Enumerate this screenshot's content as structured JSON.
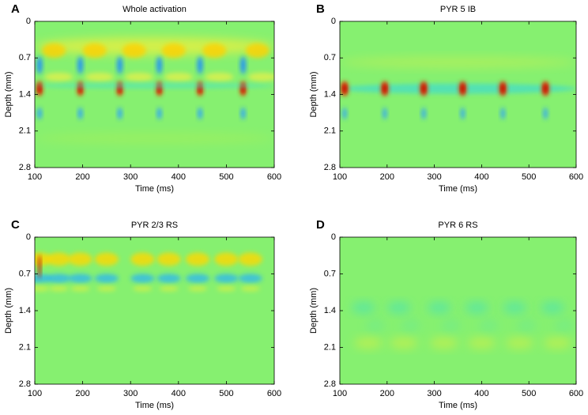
{
  "chart_data": [
    {
      "type": "heatmap",
      "panel": "A",
      "title": "Whole activation",
      "xlabel": "Time (ms)",
      "ylabel": "Depth (mm)",
      "xlim": [
        100,
        600
      ],
      "ylim": [
        2.8,
        0
      ],
      "xticks": [
        100,
        200,
        300,
        400,
        500,
        600
      ],
      "yticks": [
        0,
        0.7,
        1.4,
        2.1,
        2.8
      ]
    },
    {
      "type": "heatmap",
      "panel": "B",
      "title": "PYR 5 IB",
      "xlabel": "Time (ms)",
      "ylabel": "Depth (mm)",
      "xlim": [
        100,
        600
      ],
      "ylim": [
        2.8,
        0
      ],
      "xticks": [
        100,
        200,
        300,
        400,
        500,
        600
      ],
      "yticks": [
        0,
        0.7,
        1.4,
        2.1,
        2.8
      ]
    },
    {
      "type": "heatmap",
      "panel": "C",
      "title": "PYR 2/3 RS",
      "xlabel": "Time (ms)",
      "ylabel": "Depth (mm)",
      "xlim": [
        100,
        600
      ],
      "ylim": [
        2.8,
        0
      ],
      "xticks": [
        100,
        200,
        300,
        400,
        500,
        600
      ],
      "yticks": [
        0,
        0.7,
        1.4,
        2.1,
        2.8
      ]
    },
    {
      "type": "heatmap",
      "panel": "D",
      "title": "PYR 6 RS",
      "xlabel": "Time (ms)",
      "ylabel": "Depth (mm)",
      "xlim": [
        100,
        600
      ],
      "ylim": [
        2.8,
        0
      ],
      "xticks": [
        100,
        200,
        300,
        400,
        500,
        600
      ],
      "yticks": [
        0,
        0.7,
        1.4,
        2.1,
        2.8
      ]
    }
  ]
}
